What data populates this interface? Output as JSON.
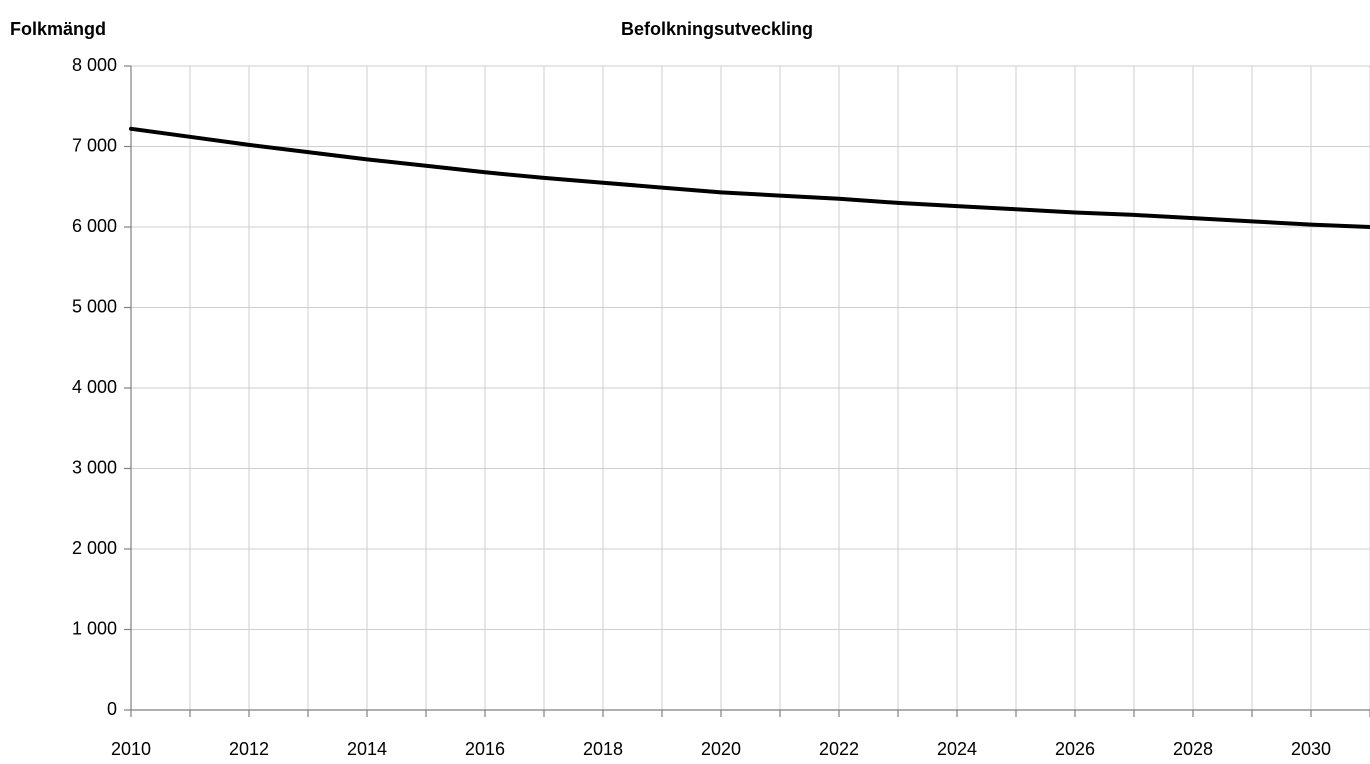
{
  "chart_data": {
    "type": "line",
    "title": "Befolkningsutveckling",
    "y_label": "Folkmängd",
    "x": [
      2010,
      2011,
      2012,
      2013,
      2014,
      2015,
      2016,
      2017,
      2018,
      2019,
      2020,
      2021,
      2022,
      2023,
      2024,
      2025,
      2026,
      2027,
      2028,
      2029,
      2030,
      2031
    ],
    "series": [
      {
        "color": "#000000",
        "values": [
          7220,
          7120,
          7020,
          6930,
          6840,
          6760,
          6680,
          6610,
          6550,
          6490,
          6430,
          6390,
          6350,
          6300,
          6260,
          6220,
          6180,
          6150,
          6110,
          6070,
          6030,
          6000
        ]
      }
    ],
    "xlim": [
      2010,
      2031
    ],
    "xticks": [
      2010,
      2012,
      2014,
      2016,
      2018,
      2020,
      2022,
      2024,
      2026,
      2028,
      2030
    ],
    "xminor_ticks": [
      2011,
      2013,
      2015,
      2017,
      2019,
      2021,
      2023,
      2025,
      2027,
      2029,
      2031
    ],
    "ylim": [
      0,
      8000
    ],
    "yticks": [
      0,
      {
        "value": 1000,
        "label": "1 000"
      },
      {
        "value": 2000,
        "label": "2 000"
      },
      {
        "value": 3000,
        "label": "3 000"
      },
      {
        "value": 4000,
        "label": "4 000"
      },
      {
        "value": 5000,
        "label": "5 000"
      },
      {
        "value": 6000,
        "label": "6 000"
      },
      {
        "value": 7000,
        "label": "7 000"
      },
      {
        "value": 8000,
        "label": "8 000"
      }
    ],
    "grid": true
  }
}
